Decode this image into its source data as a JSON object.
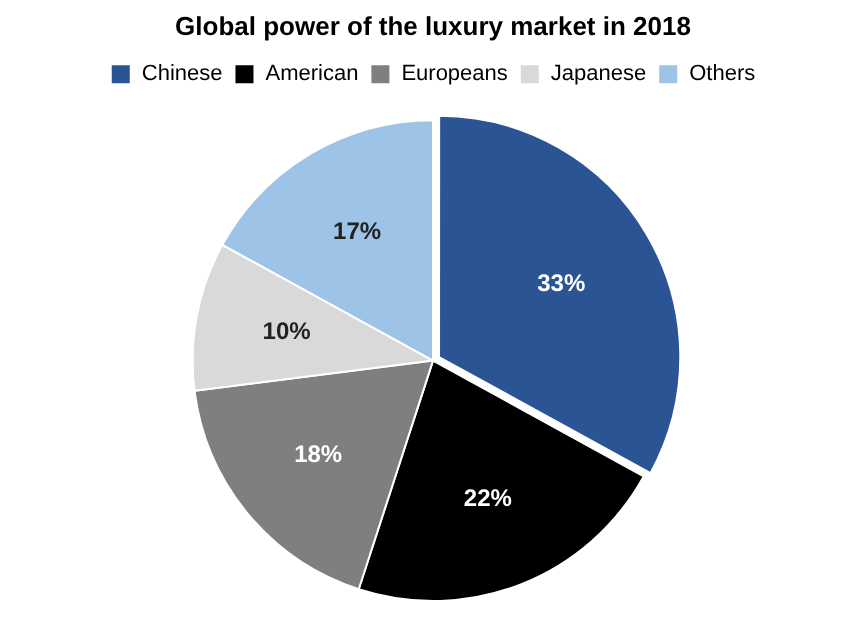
{
  "chart_data": {
    "type": "pie",
    "title": "Global power of the luxury market in 2018",
    "categories": [
      "Chinese",
      "American",
      "Europeans",
      "Japanese",
      "Others"
    ],
    "values": [
      33,
      22,
      18,
      10,
      17
    ],
    "value_labels": [
      "33%",
      "22%",
      "18%",
      "10%",
      "17%"
    ],
    "colors": [
      "#2a5494",
      "#000000",
      "#7f7f7f",
      "#d9d9d9",
      "#9dc3e6"
    ],
    "legend": "top"
  }
}
